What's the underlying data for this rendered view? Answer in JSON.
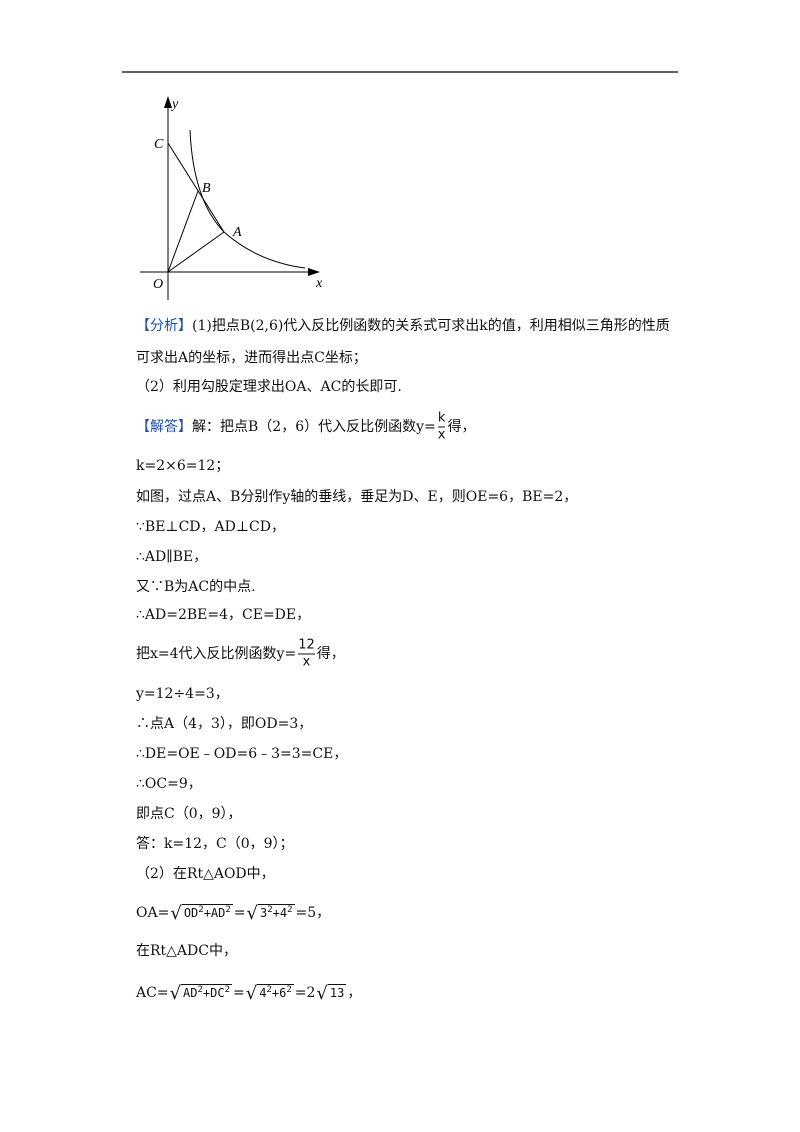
{
  "figure": {
    "labels": {
      "y": "y",
      "C": "C",
      "B": "B",
      "A": "A",
      "O": "O",
      "x": "x"
    }
  },
  "lines": [
    [
      {
        "tag": "【分析】"
      },
      "(1)把点B(2,6)代入反比例函数的关系式可求出k的值，利用相似三角形的性质"
    ],
    [
      "可求出A的坐标，进而得出点C坐标；"
    ],
    [
      "（2）利用勾股定理求出OA、AC的长即可."
    ],
    [
      {
        "tag": "【解答】"
      },
      "解：把点B（2，6）代入反比例函数y=",
      {
        "num": "k",
        "den": "x"
      },
      "得，"
    ],
    [
      "k=2×6=12；"
    ],
    [
      "如图，过点A、B分别作y轴的垂线，垂足为D、E，则OE=6，BE=2，"
    ],
    [
      "∵BE⊥CD，AD⊥CD，"
    ],
    [
      "∴AD∥BE，"
    ],
    [
      "又∵B为AC的中点."
    ],
    [
      "∴AD=2BE=4，CE=DE，"
    ],
    [
      "把x=4代入反比例函数y=",
      {
        "num": "12",
        "den": "x"
      },
      "得，"
    ],
    [
      "y=12÷4=3，"
    ],
    [
      "∴点A（4，3），即OD=3，"
    ],
    [
      "∴DE=OE﹣OD=6﹣3=3=CE，"
    ],
    [
      "∴OC=9，"
    ],
    [
      "即点C（0，9），"
    ],
    [
      "答：k=12，C（0，9）；"
    ],
    [
      "（2）在Rt△AOD中，"
    ],
    [
      "OA=",
      {
        "rad": [
          "OD",
          {
            "sup": "2"
          },
          "+AD",
          {
            "sup": "2"
          }
        ]
      },
      "=",
      {
        "rad": [
          "3",
          {
            "sup": "2"
          },
          "+4",
          {
            "sup": "2"
          }
        ]
      },
      "=5，"
    ],
    [
      "在Rt△ADC中，"
    ],
    [
      "AC=",
      {
        "rad": [
          "AD",
          {
            "sup": "2"
          },
          "+DC",
          {
            "sup": "2"
          }
        ]
      },
      "=",
      {
        "rad": [
          "4",
          {
            "sup": "2"
          },
          "+6",
          {
            "sup": "2"
          }
        ]
      },
      "=2",
      {
        "rad": [
          "13"
        ]
      },
      "，"
    ]
  ]
}
